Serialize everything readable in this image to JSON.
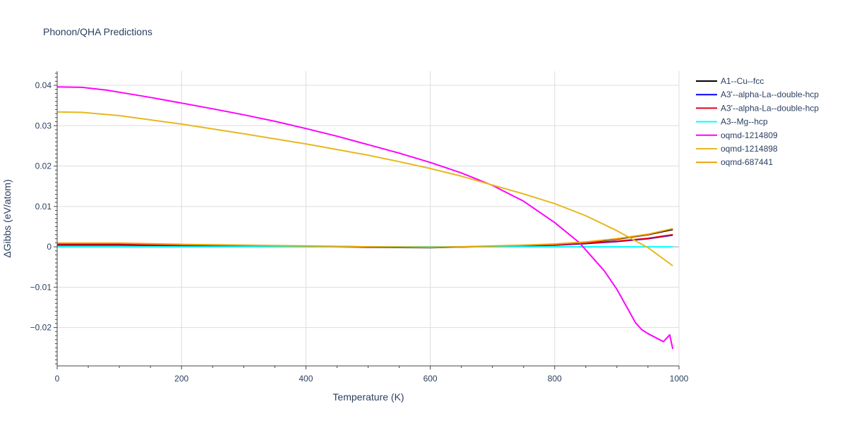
{
  "chart_data": {
    "type": "line",
    "title": "Phonon/QHA Predictions",
    "xlabel": "Temperature (K)",
    "ylabel": "ΔGibbs (eV/atom)",
    "xlim": [
      0,
      1000
    ],
    "ylim": [
      -0.0295,
      0.0435
    ],
    "x_ticks": [
      0,
      200,
      400,
      600,
      800,
      1000
    ],
    "x_tick_labels": [
      "0",
      "200",
      "400",
      "600",
      "800",
      "1000"
    ],
    "y_ticks": [
      -0.02,
      -0.01,
      0,
      0.01,
      0.02,
      0.03,
      0.04
    ],
    "y_tick_labels": [
      "−0.02",
      "−0.01",
      "0",
      "0.01",
      "0.02",
      "0.03",
      "0.04"
    ],
    "grid": true,
    "legend_position": "right",
    "series": [
      {
        "name": "A1--Cu--fcc",
        "color": "#000000",
        "x": [
          0,
          100,
          200,
          300,
          400,
          500,
          600,
          700,
          800,
          850,
          900,
          950,
          990
        ],
        "y": [
          0.0007,
          0.0007,
          0.0005,
          0.0003,
          0.0001,
          -0.0001,
          -0.0002,
          0.0001,
          0.0006,
          0.0011,
          0.0019,
          0.003,
          0.0043
        ]
      },
      {
        "name": "A3'--alpha-La--double-hcp",
        "color": "#0000ff",
        "x": [
          0,
          100,
          200,
          300,
          400,
          500,
          600,
          700,
          800,
          850,
          900,
          950,
          990
        ],
        "y": [
          0.0004,
          0.0004,
          0.0003,
          0.0002,
          0.0001,
          0.0,
          -0.0001,
          0.0001,
          0.0004,
          0.0008,
          0.0013,
          0.002,
          0.0029
        ]
      },
      {
        "name": "A3'--alpha-La--double-hcp",
        "color": "#e6001a",
        "x": [
          0,
          100,
          200,
          300,
          400,
          500,
          600,
          700,
          800,
          850,
          900,
          950,
          990
        ],
        "y": [
          0.0005,
          0.0005,
          0.0004,
          0.0003,
          0.0001,
          0.0,
          -0.0001,
          0.0001,
          0.0005,
          0.0009,
          0.0014,
          0.0021,
          0.003
        ]
      },
      {
        "name": "A3--Mg--hcp",
        "color": "#00ffff",
        "x": [
          0,
          990
        ],
        "y": [
          0,
          0
        ]
      },
      {
        "name": "oqmd-1214809",
        "color": "#ff00ff",
        "x": [
          0,
          40,
          80,
          100,
          150,
          200,
          250,
          300,
          350,
          400,
          450,
          500,
          550,
          600,
          650,
          700,
          750,
          800,
          840,
          860,
          880,
          900,
          920,
          930,
          940,
          950,
          960,
          975,
          985,
          990
        ],
        "y": [
          0.0396,
          0.0395,
          0.0388,
          0.0383,
          0.037,
          0.0356,
          0.0342,
          0.0327,
          0.0311,
          0.0293,
          0.0274,
          0.0253,
          0.0232,
          0.0209,
          0.0183,
          0.0152,
          0.0113,
          0.006,
          0.001,
          -0.0025,
          -0.006,
          -0.0105,
          -0.016,
          -0.0188,
          -0.0205,
          -0.0215,
          -0.0223,
          -0.0235,
          -0.0218,
          -0.0253
        ]
      },
      {
        "name": "oqmd-1214898",
        "color": "#e6b81e",
        "x": [
          0,
          40,
          100,
          200,
          300,
          400,
          450,
          500,
          550,
          600,
          650,
          700,
          750,
          800,
          850,
          900,
          950,
          990
        ],
        "y": [
          0.0334,
          0.0333,
          0.0325,
          0.0304,
          0.028,
          0.0255,
          0.0241,
          0.0227,
          0.0211,
          0.0194,
          0.0175,
          0.0153,
          0.0131,
          0.0107,
          0.0077,
          0.004,
          -0.0002,
          -0.0047
        ]
      },
      {
        "name": "oqmd-687441",
        "color": "#f0a000",
        "x": [
          0,
          100,
          200,
          300,
          400,
          500,
          600,
          650,
          700,
          750,
          800,
          850,
          900,
          950,
          990
        ],
        "y": [
          0.0009,
          0.0009,
          0.0006,
          0.0004,
          0.0002,
          0.0,
          -0.0001,
          0.0,
          0.0002,
          0.0004,
          0.0007,
          0.0012,
          0.002,
          0.0031,
          0.0045
        ]
      }
    ]
  }
}
